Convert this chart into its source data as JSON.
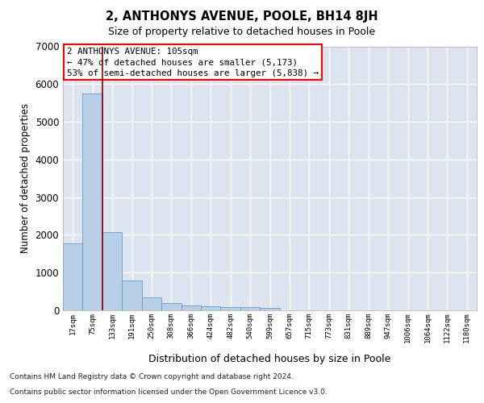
{
  "title": "2, ANTHONYS AVENUE, POOLE, BH14 8JH",
  "subtitle": "Size of property relative to detached houses in Poole",
  "xlabel": "Distribution of detached houses by size in Poole",
  "ylabel": "Number of detached properties",
  "bar_labels": [
    "17sqm",
    "75sqm",
    "133sqm",
    "191sqm",
    "250sqm",
    "308sqm",
    "366sqm",
    "424sqm",
    "482sqm",
    "540sqm",
    "599sqm",
    "657sqm",
    "715sqm",
    "773sqm",
    "831sqm",
    "889sqm",
    "947sqm",
    "1006sqm",
    "1064sqm",
    "1122sqm",
    "1180sqm"
  ],
  "bar_values": [
    1780,
    5750,
    2080,
    800,
    340,
    190,
    120,
    100,
    95,
    75,
    60,
    0,
    0,
    0,
    0,
    0,
    0,
    0,
    0,
    0,
    0
  ],
  "bar_color": "#b8cfe8",
  "bar_edge_color": "#6699cc",
  "background_color": "#dde4f0",
  "grid_color": "#ffffff",
  "red_line_x": 1.5,
  "annotation_title": "2 ANTHONYS AVENUE: 105sqm",
  "annotation_line1": "← 47% of detached houses are smaller (5,173)",
  "annotation_line2": "53% of semi-detached houses are larger (5,838) →",
  "ylim": [
    0,
    7000
  ],
  "yticks": [
    0,
    1000,
    2000,
    3000,
    4000,
    5000,
    6000,
    7000
  ],
  "footer1": "Contains HM Land Registry data © Crown copyright and database right 2024.",
  "footer2": "Contains public sector information licensed under the Open Government Licence v3.0."
}
